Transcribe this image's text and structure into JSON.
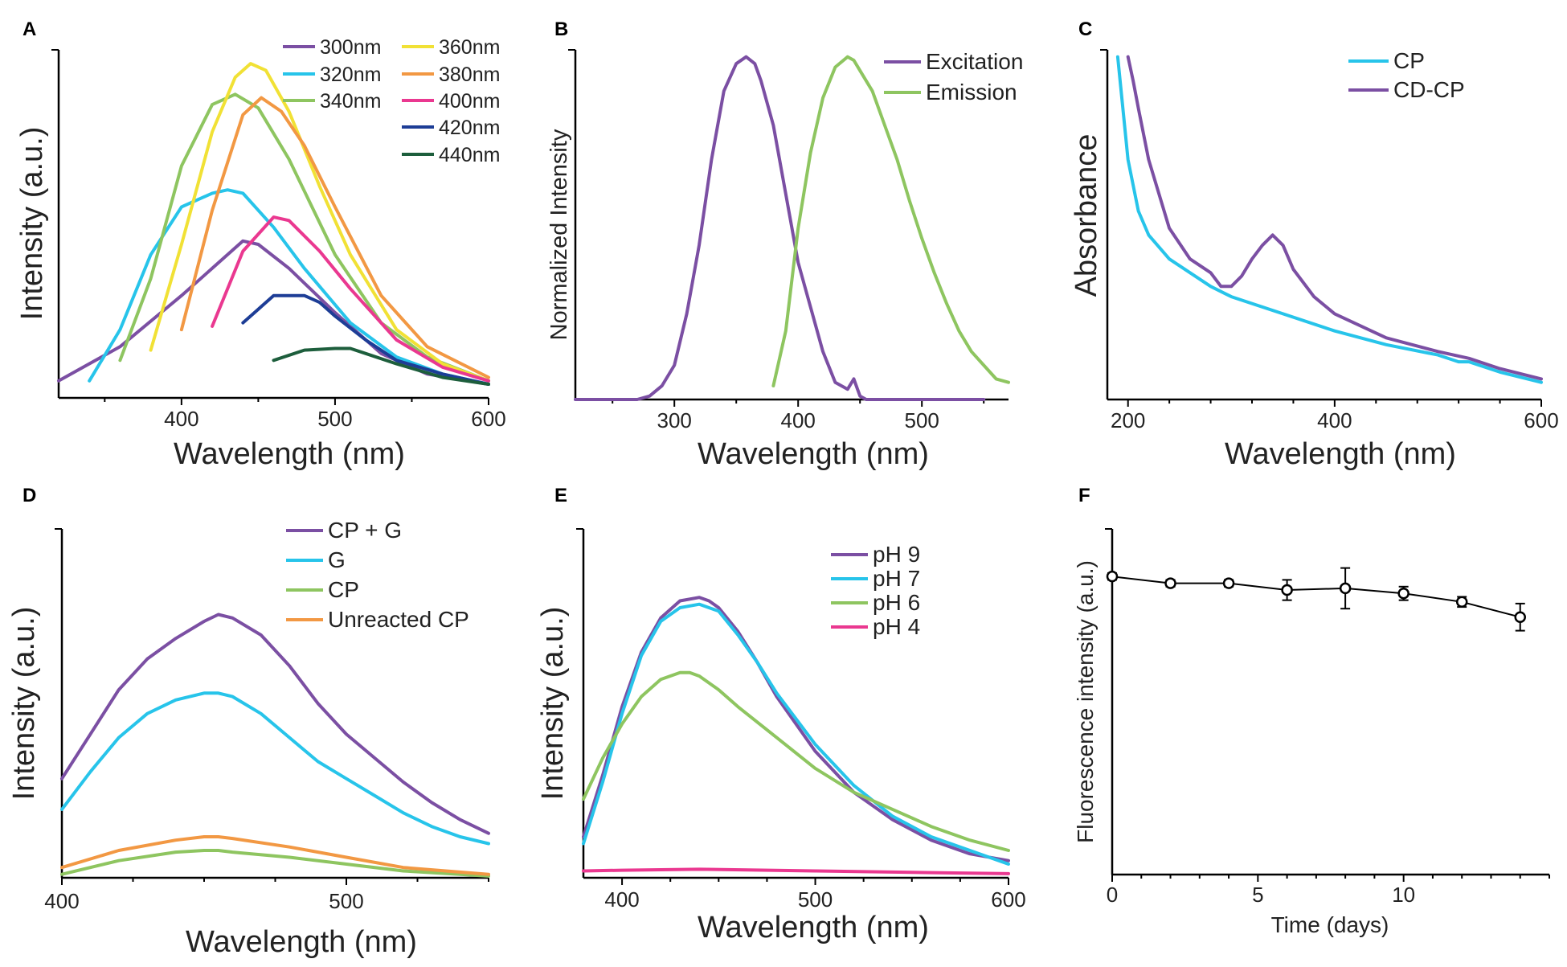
{
  "chart_data": [
    {
      "panel": "A",
      "type": "line",
      "xlabel": "Wavelength (nm)",
      "ylabel": "Intensity (a.u.)",
      "xlim": [
        320,
        600
      ],
      "ylim": [
        0,
        100
      ],
      "xticks": [
        400,
        500,
        600
      ],
      "series": [
        {
          "name": "300nm",
          "color": "#7b4fa3",
          "x": [
            320,
            360,
            400,
            420,
            440,
            450,
            470,
            500,
            530,
            560,
            600
          ],
          "y": [
            5,
            15,
            30,
            38,
            46,
            45,
            38,
            25,
            13,
            7,
            4
          ]
        },
        {
          "name": "320nm",
          "color": "#27c4ea",
          "x": [
            340,
            360,
            380,
            400,
            420,
            430,
            440,
            460,
            480,
            510,
            540,
            570,
            600
          ],
          "y": [
            5,
            20,
            42,
            56,
            60,
            61,
            60,
            50,
            38,
            22,
            12,
            7,
            4
          ]
        },
        {
          "name": "340nm",
          "color": "#8ec560",
          "x": [
            360,
            380,
            400,
            420,
            435,
            450,
            470,
            500,
            530,
            560,
            600
          ],
          "y": [
            11,
            35,
            68,
            86,
            89,
            85,
            70,
            42,
            22,
            12,
            5
          ]
        },
        {
          "name": "360nm",
          "color": "#f1e135",
          "x": [
            380,
            400,
            420,
            435,
            445,
            455,
            470,
            490,
            510,
            540,
            570,
            600
          ],
          "y": [
            14,
            45,
            78,
            94,
            98,
            96,
            84,
            62,
            42,
            20,
            10,
            5
          ]
        },
        {
          "name": "380nm",
          "color": "#f29843",
          "x": [
            400,
            420,
            440,
            452,
            465,
            480,
            500,
            530,
            560,
            600
          ],
          "y": [
            20,
            55,
            83,
            88,
            84,
            74,
            56,
            30,
            15,
            6
          ]
        },
        {
          "name": "400nm",
          "color": "#ea3890",
          "x": [
            420,
            440,
            460,
            470,
            490,
            510,
            540,
            570,
            600
          ],
          "y": [
            21,
            43,
            53,
            52,
            43,
            32,
            17,
            9,
            5
          ]
        },
        {
          "name": "420nm",
          "color": "#1d3d96",
          "x": [
            440,
            450,
            460,
            470,
            480,
            490,
            500,
            520,
            540,
            570,
            600
          ],
          "y": [
            22,
            26,
            30,
            30,
            30,
            28,
            24,
            17,
            11,
            7,
            4
          ]
        },
        {
          "name": "440nm",
          "color": "#1d5e3c",
          "x": [
            460,
            480,
            500,
            510,
            520,
            540,
            570,
            600
          ],
          "y": [
            11,
            14,
            14.5,
            14.5,
            13,
            10,
            6,
            4
          ]
        }
      ]
    },
    {
      "panel": "B",
      "type": "line",
      "xlabel": "Wavelength (nm)",
      "ylabel": "Normalized Intensity",
      "xlim": [
        220,
        570
      ],
      "ylim": [
        0,
        1
      ],
      "xticks": [
        300,
        400,
        500
      ],
      "series": [
        {
          "name": "Excitation",
          "color": "#7b4fa3",
          "x": [
            220,
            270,
            280,
            290,
            300,
            310,
            320,
            330,
            340,
            350,
            358,
            365,
            370,
            380,
            390,
            400,
            410,
            420,
            430,
            440,
            445,
            448,
            450,
            455,
            470,
            550
          ],
          "y": [
            0,
            0,
            0.01,
            0.04,
            0.1,
            0.25,
            0.45,
            0.7,
            0.9,
            0.98,
            1.0,
            0.98,
            0.93,
            0.8,
            0.6,
            0.4,
            0.27,
            0.14,
            0.05,
            0.03,
            0.06,
            0.03,
            0.01,
            0,
            0,
            0
          ]
        },
        {
          "name": "Emission",
          "color": "#8ec560",
          "x": [
            380,
            390,
            400,
            410,
            420,
            430,
            440,
            445,
            450,
            460,
            470,
            480,
            490,
            500,
            510,
            520,
            530,
            540,
            550,
            560,
            570
          ],
          "y": [
            0.04,
            0.2,
            0.5,
            0.72,
            0.88,
            0.97,
            1.0,
            0.99,
            0.96,
            0.9,
            0.8,
            0.7,
            0.58,
            0.47,
            0.37,
            0.28,
            0.2,
            0.14,
            0.1,
            0.06,
            0.05
          ]
        }
      ]
    },
    {
      "panel": "C",
      "type": "line",
      "xlabel": "Wavelength (nm)",
      "ylabel": "Absorbance",
      "xlim": [
        180,
        600
      ],
      "ylim": [
        0,
        1
      ],
      "xticks": [
        200,
        400,
        600
      ],
      "series": [
        {
          "name": "CP",
          "color": "#27c4ea",
          "x": [
            190,
            195,
            200,
            210,
            220,
            240,
            260,
            280,
            300,
            350,
            400,
            450,
            500,
            520,
            530,
            560,
            600
          ],
          "y": [
            1.0,
            0.85,
            0.7,
            0.55,
            0.48,
            0.41,
            0.37,
            0.33,
            0.3,
            0.25,
            0.2,
            0.16,
            0.13,
            0.11,
            0.11,
            0.08,
            0.05
          ]
        },
        {
          "name": "CD-CP",
          "color": "#7b4fa3",
          "x": [
            200,
            205,
            210,
            220,
            240,
            260,
            280,
            290,
            300,
            310,
            320,
            330,
            340,
            350,
            360,
            380,
            400,
            450,
            500,
            530,
            560,
            600
          ],
          "y": [
            1.0,
            0.93,
            0.85,
            0.7,
            0.5,
            0.41,
            0.37,
            0.33,
            0.33,
            0.36,
            0.41,
            0.45,
            0.48,
            0.45,
            0.38,
            0.3,
            0.25,
            0.18,
            0.14,
            0.12,
            0.09,
            0.06
          ]
        }
      ]
    },
    {
      "panel": "D",
      "type": "line",
      "xlabel": "Wavelength (nm)",
      "ylabel": "Intensity (a.u.)",
      "xlim": [
        400,
        550
      ],
      "ylim": [
        0,
        100
      ],
      "xticks": [
        400,
        500
      ],
      "series": [
        {
          "name": "CP + G",
          "color": "#7b4fa3",
          "x": [
            400,
            410,
            420,
            430,
            440,
            450,
            455,
            460,
            470,
            480,
            490,
            500,
            510,
            520,
            530,
            540,
            550
          ],
          "y": [
            29,
            42,
            55,
            64,
            70,
            75,
            77,
            76,
            71,
            62,
            51,
            42,
            35,
            28,
            22,
            17,
            13
          ]
        },
        {
          "name": "G",
          "color": "#27c4ea",
          "x": [
            400,
            410,
            420,
            430,
            440,
            450,
            455,
            460,
            470,
            480,
            490,
            500,
            510,
            520,
            530,
            540,
            550
          ],
          "y": [
            20,
            31,
            41,
            48,
            52,
            54,
            54,
            53,
            48,
            41,
            34,
            29,
            24,
            19,
            15,
            12,
            10
          ]
        },
        {
          "name": "CP",
          "color": "#8ec560",
          "x": [
            400,
            420,
            440,
            450,
            455,
            460,
            480,
            500,
            520,
            550
          ],
          "y": [
            1,
            5,
            7.5,
            8,
            8,
            7.5,
            6,
            4,
            2,
            0.5
          ]
        },
        {
          "name": "Unreacted CP",
          "color": "#f29843",
          "x": [
            400,
            420,
            440,
            450,
            455,
            460,
            480,
            500,
            520,
            550
          ],
          "y": [
            3,
            8,
            11,
            12,
            12,
            11.5,
            9,
            6,
            3,
            1
          ]
        }
      ]
    },
    {
      "panel": "E",
      "type": "line",
      "xlabel": "Wavelength (nm)",
      "ylabel": "Intensity (a.u.)",
      "xlim": [
        380,
        600
      ],
      "ylim": [
        0,
        100
      ],
      "xticks": [
        400,
        500,
        600
      ],
      "series": [
        {
          "name": "pH 9",
          "color": "#7b4fa3",
          "x": [
            380,
            390,
            400,
            410,
            420,
            430,
            440,
            445,
            450,
            460,
            470,
            480,
            500,
            520,
            540,
            560,
            580,
            600
          ],
          "y": [
            12,
            30,
            50,
            66,
            76,
            81,
            82,
            81,
            79,
            72,
            63,
            53,
            37,
            25,
            17,
            11,
            7,
            5
          ]
        },
        {
          "name": "pH 7",
          "color": "#27c4ea",
          "x": [
            380,
            390,
            400,
            410,
            420,
            430,
            440,
            450,
            460,
            470,
            480,
            500,
            520,
            540,
            560,
            580,
            600
          ],
          "y": [
            10,
            28,
            48,
            65,
            75,
            79,
            80,
            78,
            71,
            63,
            54,
            39,
            27,
            18,
            12,
            8,
            4
          ]
        },
        {
          "name": "pH 6",
          "color": "#8ec560",
          "x": [
            380,
            390,
            400,
            410,
            420,
            430,
            435,
            440,
            450,
            460,
            480,
            500,
            520,
            540,
            560,
            580,
            600
          ],
          "y": [
            23,
            35,
            45,
            53,
            58,
            60,
            60,
            59,
            55,
            50,
            41,
            32,
            25,
            20,
            15,
            11,
            8
          ]
        },
        {
          "name": "pH 4",
          "color": "#ea3890",
          "x": [
            380,
            400,
            440,
            500,
            560,
            600
          ],
          "y": [
            2,
            2.2,
            2.5,
            2,
            1.5,
            1.2
          ]
        }
      ]
    },
    {
      "panel": "F",
      "type": "scatter",
      "xlabel": "Time (days)",
      "ylabel": "Fluorescence intensity (a.u.)",
      "xlim": [
        0,
        15
      ],
      "ylim": [
        0,
        1
      ],
      "xticks": [
        0,
        5,
        10
      ],
      "series": [
        {
          "name": "Fluorescence",
          "color": "#000000",
          "x": [
            0,
            2,
            4,
            6,
            8,
            10,
            12,
            14
          ],
          "y": [
            0.88,
            0.86,
            0.86,
            0.84,
            0.845,
            0.83,
            0.805,
            0.76
          ],
          "err": [
            0.01,
            0.01,
            0.01,
            0.03,
            0.06,
            0.02,
            0.015,
            0.04
          ]
        }
      ]
    }
  ],
  "legend_a_header": ""
}
